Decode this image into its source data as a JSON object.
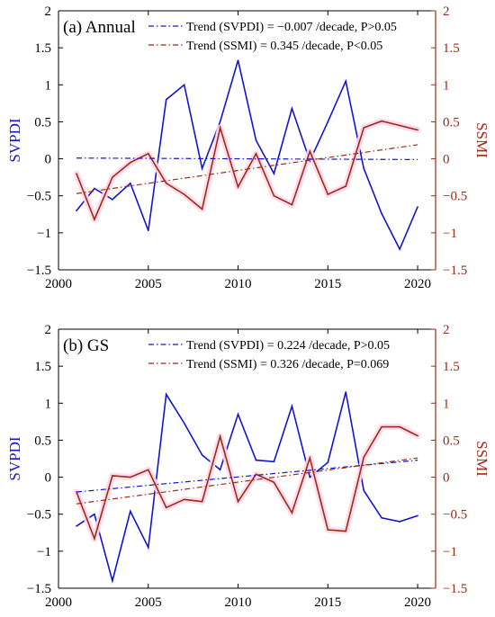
{
  "colors": {
    "svpdi": "#1414d2",
    "ssmi": "#a02814",
    "ssmi_glow": "#ffd8ea",
    "axis": "#000000",
    "right_axis": "#a02814",
    "left_label": "#1414d2"
  },
  "chart_data": [
    {
      "type": "line",
      "title": "(a) Annual",
      "xlabel": "",
      "ylabel": "SVPDI",
      "y2label": "SSMI",
      "xlim": [
        2000,
        2021
      ],
      "ylim": [
        -1.5,
        2
      ],
      "y2lim": [
        -1.5,
        2
      ],
      "xticks": [
        "2000",
        "2005",
        "2010",
        "2015",
        "2020"
      ],
      "yticks": [
        "-1.5",
        "-1",
        "-0.5",
        "0",
        "0.5",
        "1",
        "1.5",
        "2"
      ],
      "y2ticks": [
        "-1.5",
        "-1",
        "-0.5",
        "0",
        "0.5",
        "1",
        "1.5",
        "2"
      ],
      "x": [
        2001,
        2002,
        2003,
        2004,
        2005,
        2006,
        2007,
        2008,
        2009,
        2010,
        2011,
        2012,
        2013,
        2014,
        2015,
        2016,
        2017,
        2018,
        2019,
        2020
      ],
      "series": [
        {
          "name": "SVPDI",
          "axis": "left",
          "values": [
            -0.7,
            -0.4,
            -0.55,
            -0.33,
            -0.97,
            0.8,
            1.0,
            -0.13,
            0.5,
            1.33,
            0.25,
            -0.2,
            0.68,
            -0.03,
            0.5,
            1.05,
            -0.13,
            -0.74,
            -1.22,
            -0.65
          ]
        },
        {
          "name": "SSMI",
          "axis": "right",
          "values": [
            -0.2,
            -0.82,
            -0.25,
            -0.05,
            0.07,
            -0.33,
            -0.48,
            -0.68,
            0.42,
            -0.38,
            0.07,
            -0.5,
            -0.62,
            0.1,
            -0.48,
            -0.37,
            0.42,
            0.51,
            0.45,
            0.39
          ]
        }
      ],
      "trends": [
        {
          "label": "Trend (SVPDI) = −0.007 /decade, P>0.05",
          "axis": "left",
          "y_start": 0.01,
          "y_end": -0.01
        },
        {
          "label": "Trend (SSMI) = 0.345 /decade, P<0.05",
          "axis": "right",
          "y_start": -0.47,
          "y_end": 0.19
        }
      ],
      "legend_position": "top-right",
      "grid": false
    },
    {
      "type": "line",
      "title": "(b) GS",
      "xlabel": "",
      "ylabel": "SVPDI",
      "y2label": "SSMI",
      "xlim": [
        2000,
        2021
      ],
      "ylim": [
        -1.5,
        2
      ],
      "y2lim": [
        -1.5,
        2
      ],
      "xticks": [
        "2000",
        "2005",
        "2010",
        "2015",
        "2020"
      ],
      "yticks": [
        "-1.5",
        "-1",
        "-0.5",
        "0",
        "0.5",
        "1",
        "1.5",
        "2"
      ],
      "y2ticks": [
        "-1.5",
        "-1",
        "-0.5",
        "0",
        "0.5",
        "1",
        "1.5",
        "2"
      ],
      "x": [
        2001,
        2002,
        2003,
        2004,
        2005,
        2006,
        2007,
        2008,
        2009,
        2010,
        2011,
        2012,
        2013,
        2014,
        2015,
        2016,
        2017,
        2018,
        2019,
        2020
      ],
      "series": [
        {
          "name": "SVPDI",
          "axis": "left",
          "values": [
            -0.66,
            -0.5,
            -1.4,
            -0.46,
            -0.95,
            1.12,
            0.73,
            0.3,
            0.1,
            0.85,
            0.23,
            0.21,
            0.96,
            0.0,
            0.2,
            1.15,
            -0.18,
            -0.55,
            -0.6,
            -0.52
          ]
        },
        {
          "name": "SSMI",
          "axis": "right",
          "values": [
            -0.2,
            -0.83,
            0.02,
            0.0,
            0.1,
            -0.41,
            -0.3,
            -0.33,
            0.55,
            -0.33,
            0.04,
            -0.07,
            -0.48,
            0.26,
            -0.71,
            -0.73,
            0.27,
            0.68,
            0.68,
            0.56
          ]
        }
      ],
      "trends": [
        {
          "label": "Trend (SVPDI) = 0.224 /decade, P>0.05",
          "axis": "left",
          "y_start": -0.2,
          "y_end": 0.23
        },
        {
          "label": "Trend (SSMI) = 0.326 /decade, P=0.069",
          "axis": "right",
          "y_start": -0.36,
          "y_end": 0.26
        }
      ],
      "legend_position": "top-right",
      "grid": false
    }
  ]
}
